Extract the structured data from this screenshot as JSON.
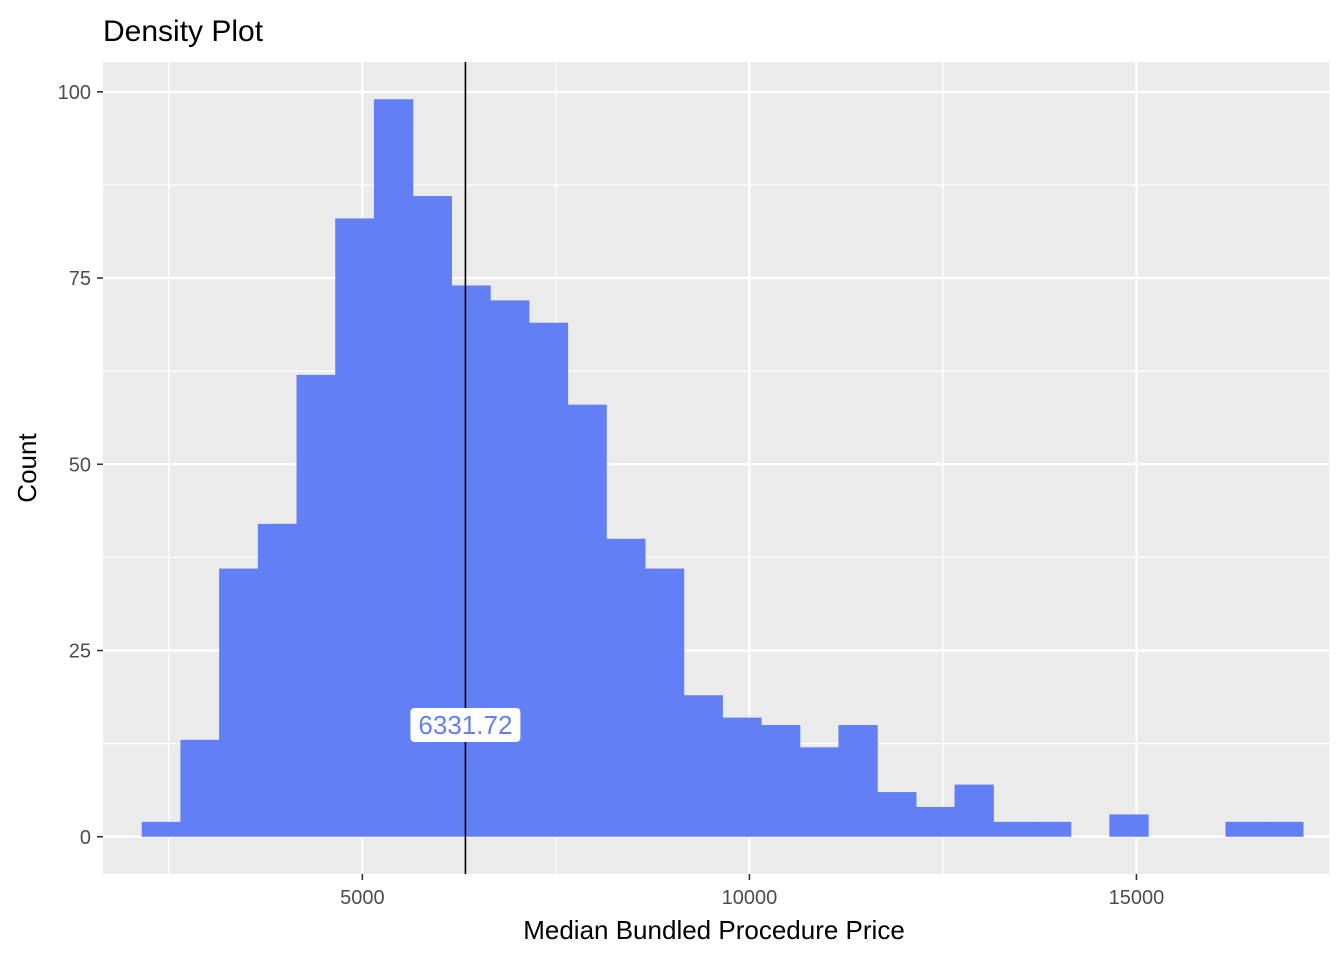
{
  "chart_data": {
    "type": "bar",
    "title": "Density Plot",
    "xlabel": "Median Bundled Procedure Price",
    "ylabel": "Count",
    "x_ticks": [
      5000,
      10000,
      15000
    ],
    "y_ticks": [
      0,
      25,
      50,
      75,
      100
    ],
    "xlim": [
      1650,
      17500
    ],
    "ylim": [
      -5,
      104
    ],
    "bin_width": 500,
    "bins": [
      {
        "start": 2150,
        "count": 2
      },
      {
        "start": 2650,
        "count": 13
      },
      {
        "start": 3150,
        "count": 36
      },
      {
        "start": 3650,
        "count": 42
      },
      {
        "start": 4150,
        "count": 62
      },
      {
        "start": 4650,
        "count": 83
      },
      {
        "start": 5150,
        "count": 99
      },
      {
        "start": 5650,
        "count": 86
      },
      {
        "start": 6150,
        "count": 74
      },
      {
        "start": 6650,
        "count": 72
      },
      {
        "start": 7150,
        "count": 69
      },
      {
        "start": 7650,
        "count": 58
      },
      {
        "start": 8150,
        "count": 40
      },
      {
        "start": 8650,
        "count": 36
      },
      {
        "start": 9150,
        "count": 19
      },
      {
        "start": 9650,
        "count": 16
      },
      {
        "start": 10150,
        "count": 15
      },
      {
        "start": 10650,
        "count": 12
      },
      {
        "start": 11150,
        "count": 15
      },
      {
        "start": 11650,
        "count": 6
      },
      {
        "start": 12150,
        "count": 4
      },
      {
        "start": 12650,
        "count": 7
      },
      {
        "start": 13150,
        "count": 2
      },
      {
        "start": 13650,
        "count": 2
      },
      {
        "start": 14150,
        "count": 0
      },
      {
        "start": 14650,
        "count": 3
      },
      {
        "start": 15150,
        "count": 0
      },
      {
        "start": 15650,
        "count": 0
      },
      {
        "start": 16150,
        "count": 2
      },
      {
        "start": 16650,
        "count": 2
      }
    ],
    "reference_line": {
      "x": 6331.72,
      "label_y": 15
    },
    "annotation_label": "6331.72",
    "grid": true,
    "colors": {
      "bar": "#627ff6",
      "panel": "#ebebeb",
      "grid": "#ffffff",
      "reference_line": "#000000",
      "annotation_text": "#627ff6"
    }
  }
}
